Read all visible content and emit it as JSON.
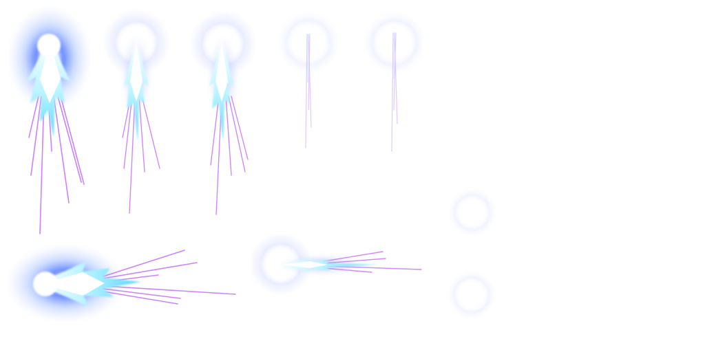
{
  "sprite_sheet": {
    "background": "#ffffff",
    "colors": {
      "glow_blue": "#3d6bff",
      "glow_light": "#8fb0ff",
      "halo": "#d9e0ff",
      "core": "#ffffff",
      "arrow_cyan": "#5cd6ff",
      "arrow_cyan_light": "#b8f4ff",
      "trail_magenta": "#c36bff",
      "trail_pink": "#e07dff"
    },
    "frames": [
      {
        "name": "vertical-frame-1",
        "icon": "energy-arrow-icon",
        "direction": "down",
        "glow": "strong"
      },
      {
        "name": "vertical-frame-2",
        "icon": "energy-arrow-icon",
        "direction": "down",
        "glow": "medium"
      },
      {
        "name": "vertical-frame-3",
        "icon": "energy-arrow-icon",
        "direction": "down",
        "glow": "medium"
      },
      {
        "name": "vertical-frame-4",
        "icon": "faint-streak-icon",
        "direction": "down",
        "glow": "faint"
      },
      {
        "name": "vertical-frame-5",
        "icon": "faint-streak-icon",
        "direction": "down",
        "glow": "faint"
      },
      {
        "name": "horizontal-frame-1",
        "icon": "energy-arrow-icon",
        "direction": "right",
        "glow": "strong"
      },
      {
        "name": "horizontal-frame-2",
        "icon": "energy-arrow-icon",
        "direction": "right",
        "glow": "medium"
      },
      {
        "name": "halo-ring-1",
        "icon": "halo-ring-icon"
      },
      {
        "name": "halo-ring-2",
        "icon": "halo-ring-icon"
      }
    ]
  }
}
